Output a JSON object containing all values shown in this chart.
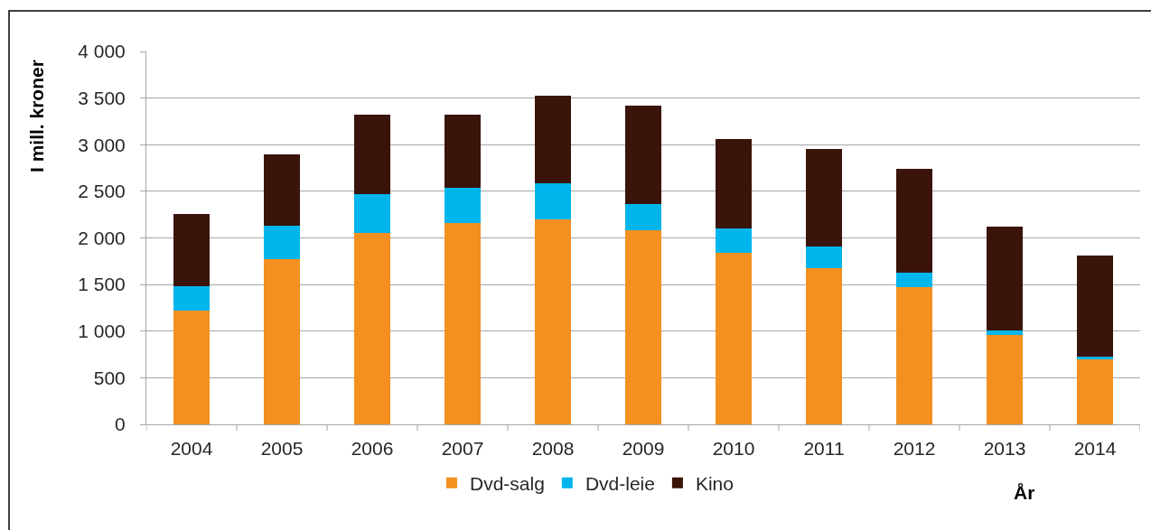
{
  "chart_data": {
    "type": "bar",
    "stacked": true,
    "xlabel": "År",
    "ylabel": "I mill. kroner",
    "categories": [
      "2004",
      "2005",
      "2006",
      "2007",
      "2008",
      "2009",
      "2010",
      "2011",
      "2012",
      "2013",
      "2014"
    ],
    "series": [
      {
        "name": "Dvd-salg",
        "color": "#f39020",
        "values": [
          1220,
          1770,
          2050,
          2160,
          2200,
          2080,
          1840,
          1680,
          1470,
          960,
          700
        ]
      },
      {
        "name": "Dvd-leie",
        "color": "#00b5eb",
        "values": [
          260,
          360,
          420,
          380,
          390,
          280,
          260,
          230,
          160,
          50,
          30
        ]
      },
      {
        "name": "Kino",
        "color": "#3a140a",
        "values": [
          780,
          770,
          850,
          780,
          940,
          1060,
          960,
          1040,
          1110,
          1110,
          1080
        ]
      }
    ],
    "ylim": [
      0,
      4000
    ],
    "yticks": [
      0,
      500,
      {
        "value": 1000,
        "label": "1 000"
      },
      {
        "value": 1500,
        "label": "1 500"
      },
      {
        "value": 2000,
        "label": "2 000"
      },
      {
        "value": 2500,
        "label": "2 500"
      },
      {
        "value": 3000,
        "label": "3 000"
      },
      {
        "value": 3500,
        "label": "3 500"
      },
      {
        "value": 4000,
        "label": "4 000"
      }
    ],
    "grid": "y",
    "legend": "bottom"
  }
}
